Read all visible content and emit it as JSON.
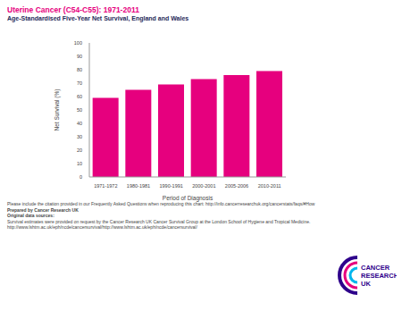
{
  "chart_data": {
    "type": "bar",
    "title": "Uterine Cancer (C54-C55): 1971-2011",
    "subtitle": "Age-Standardised Five-Year Net Survival, England and Wales",
    "x_label": "Period of Diagnosis",
    "y_label": "Net Survival (%)",
    "categories": [
      "1971-1972",
      "1980-1981",
      "1990-1991",
      "2000-2001",
      "2005-2006",
      "2010-2011"
    ],
    "values": [
      59,
      65,
      69,
      73,
      76,
      79
    ],
    "color": "#e6007e",
    "ylim": [
      0,
      100
    ],
    "yticks": [
      0,
      10,
      20,
      30,
      40,
      50,
      60,
      70,
      80,
      90,
      100
    ],
    "grid": false
  },
  "footer": [
    "Please include the citation provided in our Frequently Asked Questions when reproducing this chart: http://info.cancerresearchuk.org/cancerstats/faqs/#How",
    "Prepared by Cancer Research UK",
    "Original data sources:",
    "Survival estimates were provided on request by the Cancer Research UK Cancer Survival Group at the London School of Hygiene and Tropical Medicine.",
    "http://www.lshtm.ac.uk/eph/ncde/cancersurvival/http://www.lshtm.ac.uk/eph/ncde/cancersurvival/"
  ],
  "logo": [
    "CANCER",
    "RESEARCH",
    "UK"
  ]
}
